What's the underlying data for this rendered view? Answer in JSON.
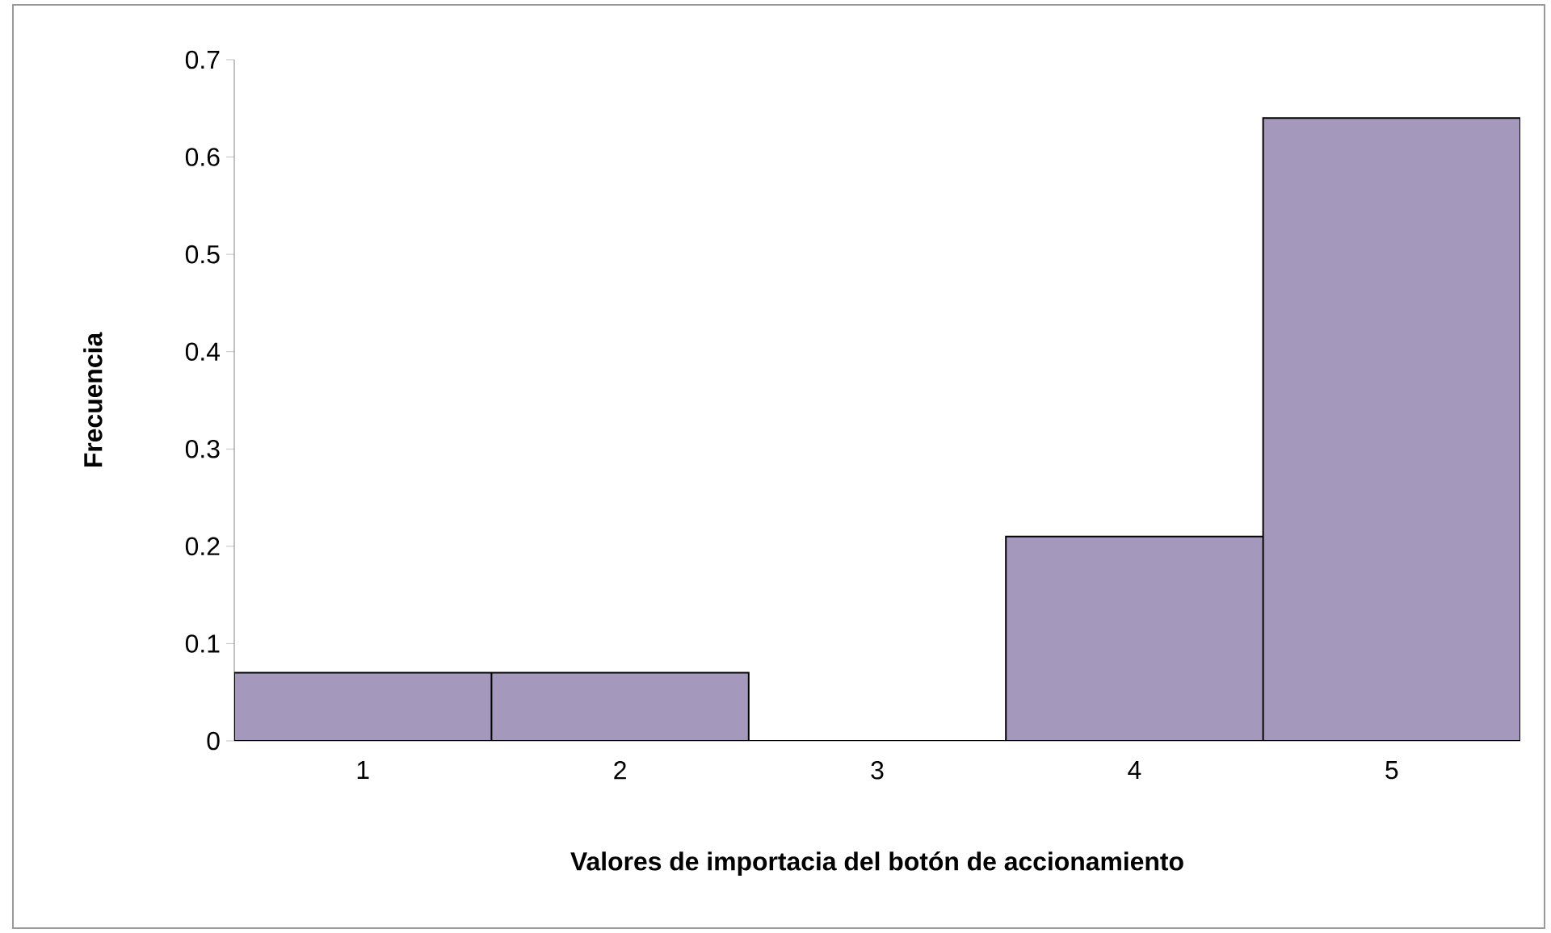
{
  "chart_data": {
    "type": "bar",
    "categories": [
      "1",
      "2",
      "3",
      "4",
      "5"
    ],
    "values": [
      0.07,
      0.07,
      0,
      0.21,
      0.64
    ],
    "color": "#a598bd",
    "xlabel": "Valores de importacia del botón de accionamiento",
    "ylabel": "Frecuencia",
    "ylim": [
      0,
      0.7
    ],
    "yticks": [
      0,
      0.1,
      0.2,
      0.3,
      0.4,
      0.5,
      0.6,
      0.7
    ]
  }
}
